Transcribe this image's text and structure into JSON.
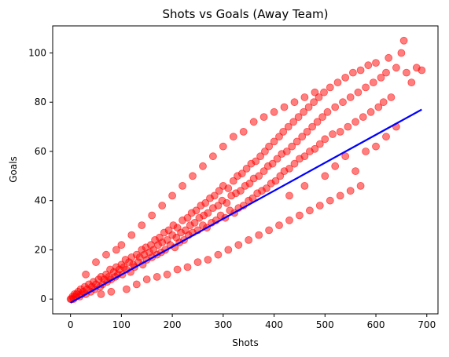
{
  "chart_data": {
    "type": "scatter",
    "title": "Shots vs Goals (Away Team)",
    "xlabel": "Shots",
    "ylabel": "Goals",
    "xlim": [
      -35,
      722
    ],
    "ylim": [
      -6,
      111
    ],
    "x_ticks": [
      0,
      100,
      200,
      300,
      400,
      500,
      600,
      700
    ],
    "y_ticks": [
      0,
      20,
      40,
      60,
      80,
      100
    ],
    "grid": false,
    "legend": "none",
    "colors": {
      "points": "#ff0000",
      "trend": "#0000ff"
    },
    "series": [
      {
        "kind": "scatter",
        "alpha": 0.5,
        "points": [
          [
            0,
            0
          ],
          [
            2,
            0
          ],
          [
            4,
            1
          ],
          [
            6,
            0
          ],
          [
            8,
            2
          ],
          [
            10,
            1
          ],
          [
            12,
            2
          ],
          [
            15,
            3
          ],
          [
            18,
            1
          ],
          [
            20,
            4
          ],
          [
            22,
            2
          ],
          [
            25,
            3
          ],
          [
            28,
            5
          ],
          [
            30,
            2
          ],
          [
            33,
            4
          ],
          [
            36,
            6
          ],
          [
            40,
            3
          ],
          [
            42,
            5
          ],
          [
            45,
            7
          ],
          [
            48,
            4
          ],
          [
            50,
            6
          ],
          [
            55,
            8
          ],
          [
            58,
            5
          ],
          [
            60,
            9
          ],
          [
            63,
            6
          ],
          [
            66,
            8
          ],
          [
            70,
            10
          ],
          [
            72,
            7
          ],
          [
            75,
            9
          ],
          [
            78,
            12
          ],
          [
            80,
            8
          ],
          [
            85,
            11
          ],
          [
            88,
            9
          ],
          [
            90,
            13
          ],
          [
            93,
            10
          ],
          [
            96,
            12
          ],
          [
            100,
            14
          ],
          [
            102,
            10
          ],
          [
            105,
            13
          ],
          [
            108,
            16
          ],
          [
            110,
            12
          ],
          [
            115,
            15
          ],
          [
            118,
            11
          ],
          [
            120,
            17
          ],
          [
            123,
            14
          ],
          [
            126,
            13
          ],
          [
            130,
            18
          ],
          [
            133,
            15
          ],
          [
            136,
            17
          ],
          [
            140,
            20
          ],
          [
            142,
            14
          ],
          [
            145,
            18
          ],
          [
            148,
            21
          ],
          [
            150,
            16
          ],
          [
            155,
            19
          ],
          [
            158,
            22
          ],
          [
            160,
            17
          ],
          [
            163,
            20
          ],
          [
            166,
            24
          ],
          [
            170,
            18
          ],
          [
            172,
            22
          ],
          [
            175,
            25
          ],
          [
            178,
            19
          ],
          [
            180,
            23
          ],
          [
            184,
            27
          ],
          [
            186,
            20
          ],
          [
            190,
            24
          ],
          [
            193,
            28
          ],
          [
            196,
            22
          ],
          [
            200,
            26
          ],
          [
            202,
            30
          ],
          [
            205,
            21
          ],
          [
            208,
            25
          ],
          [
            210,
            29
          ],
          [
            214,
            23
          ],
          [
            217,
            27
          ],
          [
            220,
            32
          ],
          [
            223,
            24
          ],
          [
            226,
            28
          ],
          [
            230,
            33
          ],
          [
            232,
            26
          ],
          [
            235,
            30
          ],
          [
            238,
            35
          ],
          [
            240,
            27
          ],
          [
            244,
            31
          ],
          [
            247,
            36
          ],
          [
            250,
            28
          ],
          [
            253,
            33
          ],
          [
            256,
            38
          ],
          [
            260,
            30
          ],
          [
            262,
            34
          ],
          [
            265,
            39
          ],
          [
            268,
            29
          ],
          [
            270,
            35
          ],
          [
            274,
            41
          ],
          [
            277,
            31
          ],
          [
            280,
            37
          ],
          [
            283,
            42
          ],
          [
            286,
            32
          ],
          [
            290,
            38
          ],
          [
            292,
            44
          ],
          [
            295,
            34
          ],
          [
            298,
            40
          ],
          [
            300,
            46
          ],
          [
            304,
            33
          ],
          [
            307,
            39
          ],
          [
            310,
            45
          ],
          [
            313,
            36
          ],
          [
            316,
            42
          ],
          [
            320,
            48
          ],
          [
            322,
            35
          ],
          [
            325,
            43
          ],
          [
            328,
            50
          ],
          [
            330,
            37
          ],
          [
            334,
            44
          ],
          [
            337,
            51
          ],
          [
            340,
            38
          ],
          [
            343,
            46
          ],
          [
            346,
            53
          ],
          [
            350,
            40
          ],
          [
            352,
            47
          ],
          [
            355,
            55
          ],
          [
            358,
            41
          ],
          [
            360,
            49
          ],
          [
            364,
            56
          ],
          [
            367,
            43
          ],
          [
            370,
            50
          ],
          [
            373,
            58
          ],
          [
            376,
            44
          ],
          [
            380,
            52
          ],
          [
            382,
            60
          ],
          [
            385,
            45
          ],
          [
            388,
            54
          ],
          [
            390,
            62
          ],
          [
            394,
            47
          ],
          [
            397,
            55
          ],
          [
            400,
            64
          ],
          [
            403,
            48
          ],
          [
            406,
            57
          ],
          [
            410,
            66
          ],
          [
            412,
            50
          ],
          [
            415,
            59
          ],
          [
            418,
            68
          ],
          [
            420,
            52
          ],
          [
            425,
            60
          ],
          [
            428,
            70
          ],
          [
            430,
            53
          ],
          [
            435,
            62
          ],
          [
            438,
            72
          ],
          [
            440,
            55
          ],
          [
            445,
            64
          ],
          [
            448,
            74
          ],
          [
            450,
            57
          ],
          [
            455,
            66
          ],
          [
            458,
            76
          ],
          [
            460,
            58
          ],
          [
            465,
            68
          ],
          [
            468,
            78
          ],
          [
            470,
            60
          ],
          [
            475,
            70
          ],
          [
            478,
            80
          ],
          [
            480,
            61
          ],
          [
            485,
            72
          ],
          [
            488,
            82
          ],
          [
            490,
            63
          ],
          [
            495,
            74
          ],
          [
            498,
            84
          ],
          [
            500,
            65
          ],
          [
            505,
            76
          ],
          [
            510,
            86
          ],
          [
            515,
            67
          ],
          [
            520,
            78
          ],
          [
            525,
            88
          ],
          [
            530,
            68
          ],
          [
            535,
            80
          ],
          [
            540,
            90
          ],
          [
            545,
            70
          ],
          [
            550,
            82
          ],
          [
            555,
            92
          ],
          [
            560,
            72
          ],
          [
            565,
            84
          ],
          [
            570,
            93
          ],
          [
            575,
            74
          ],
          [
            580,
            86
          ],
          [
            585,
            95
          ],
          [
            590,
            76
          ],
          [
            595,
            88
          ],
          [
            600,
            96
          ],
          [
            605,
            78
          ],
          [
            610,
            90
          ],
          [
            615,
            80
          ],
          [
            620,
            92
          ],
          [
            625,
            98
          ],
          [
            630,
            82
          ],
          [
            640,
            94
          ],
          [
            650,
            100
          ],
          [
            655,
            105
          ],
          [
            660,
            92
          ],
          [
            670,
            88
          ],
          [
            680,
            94
          ],
          [
            690,
            93
          ],
          [
            430,
            42
          ],
          [
            460,
            46
          ],
          [
            500,
            50
          ],
          [
            520,
            54
          ],
          [
            540,
            58
          ],
          [
            560,
            52
          ],
          [
            580,
            60
          ],
          [
            600,
            62
          ],
          [
            620,
            66
          ],
          [
            640,
            70
          ],
          [
            100,
            22
          ],
          [
            120,
            26
          ],
          [
            140,
            30
          ],
          [
            160,
            34
          ],
          [
            180,
            38
          ],
          [
            200,
            42
          ],
          [
            220,
            46
          ],
          [
            240,
            50
          ],
          [
            260,
            54
          ],
          [
            280,
            58
          ],
          [
            300,
            62
          ],
          [
            320,
            66
          ],
          [
            340,
            68
          ],
          [
            360,
            72
          ],
          [
            380,
            74
          ],
          [
            400,
            76
          ],
          [
            420,
            78
          ],
          [
            440,
            80
          ],
          [
            460,
            82
          ],
          [
            480,
            84
          ],
          [
            50,
            15
          ],
          [
            70,
            18
          ],
          [
            90,
            20
          ],
          [
            30,
            10
          ],
          [
            60,
            2
          ],
          [
            80,
            3
          ],
          [
            110,
            4
          ],
          [
            130,
            6
          ],
          [
            150,
            8
          ],
          [
            170,
            9
          ],
          [
            190,
            10
          ],
          [
            210,
            12
          ],
          [
            230,
            13
          ],
          [
            250,
            15
          ],
          [
            270,
            16
          ],
          [
            290,
            18
          ],
          [
            310,
            20
          ],
          [
            330,
            22
          ],
          [
            350,
            24
          ],
          [
            370,
            26
          ],
          [
            390,
            28
          ],
          [
            410,
            30
          ],
          [
            430,
            32
          ],
          [
            450,
            34
          ],
          [
            470,
            36
          ],
          [
            490,
            38
          ],
          [
            510,
            40
          ],
          [
            530,
            42
          ],
          [
            550,
            44
          ],
          [
            570,
            46
          ]
        ]
      },
      {
        "kind": "line",
        "points": [
          [
            0,
            -1.5
          ],
          [
            690,
            77
          ]
        ]
      }
    ]
  }
}
